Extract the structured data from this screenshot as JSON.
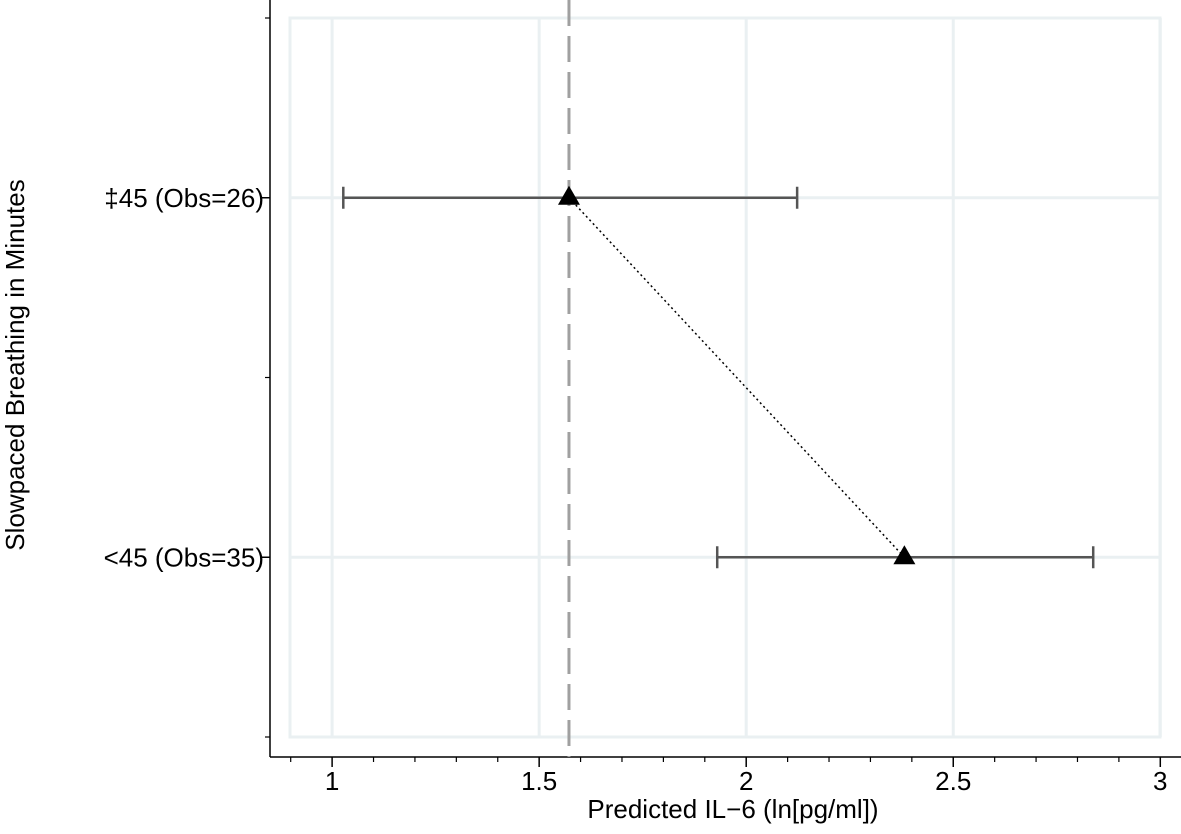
{
  "chart_data": {
    "type": "errorbar",
    "x_label": "Predicted IL−6 (ln[pg/ml])",
    "y_label": "Slowpaced Breathing in Minutes",
    "categories": [
      "‡45 (Obs=26)",
      "<45 (Obs=35)"
    ],
    "values": [
      1.572,
      2.382
    ],
    "lower": [
      1.027,
      1.93
    ],
    "upper": [
      2.123,
      2.838
    ],
    "color": "#000000",
    "errorbar_color": "#555555",
    "reference_line": 1.572,
    "xlim": [
      0.85,
      3.05
    ],
    "xticks": [
      1,
      1.5,
      2,
      2.5,
      3
    ],
    "xminorticks": [
      0.9,
      1.1,
      1.2,
      1.3,
      1.4,
      1.6,
      1.7,
      1.8,
      1.9,
      2.1,
      2.2,
      2.3,
      2.4,
      2.6,
      2.7,
      2.8,
      2.9
    ],
    "grid": true
  }
}
